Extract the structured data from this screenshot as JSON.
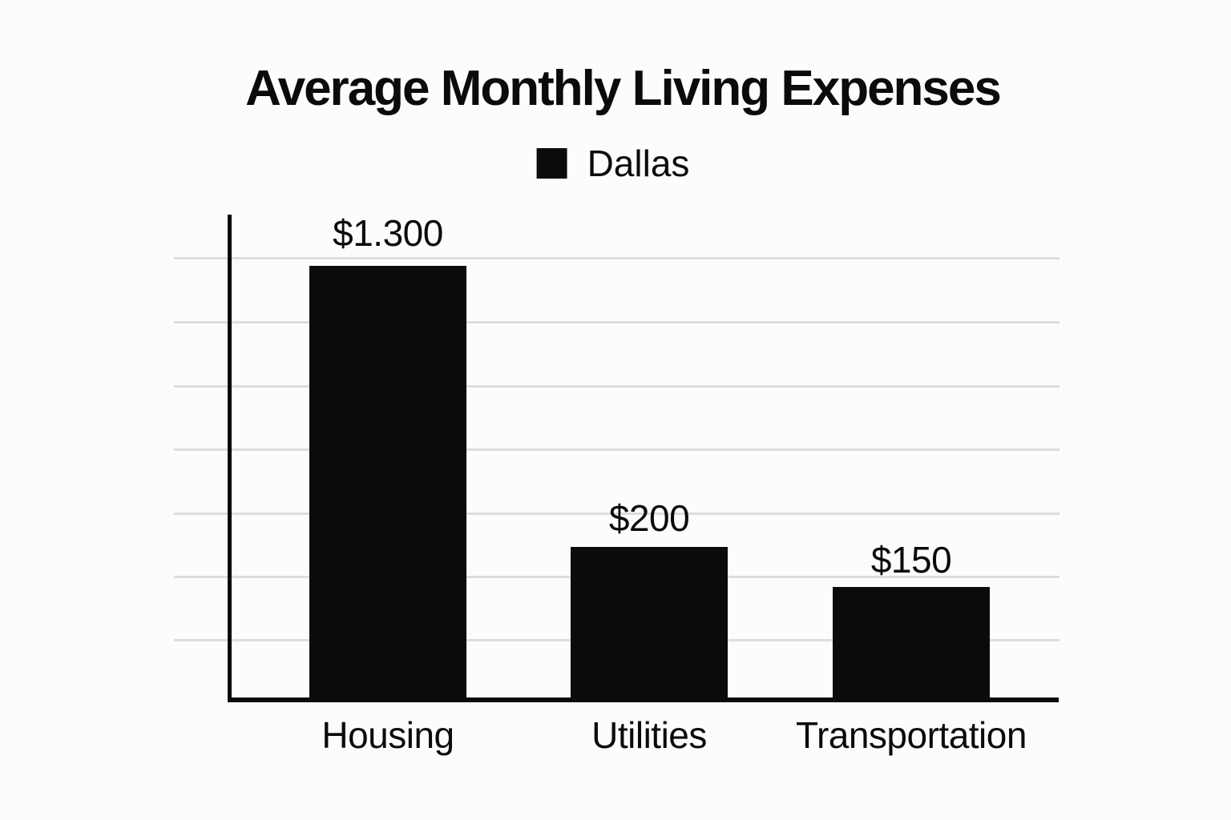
{
  "chart_data": {
    "type": "bar",
    "title": "Average Monthly Living Expenses",
    "legend": {
      "position": "top-center",
      "entries": [
        {
          "label": "Dallas",
          "swatch_color": "#0b0b0b"
        }
      ]
    },
    "categories": [
      "Housing",
      "Utilities",
      "Transportation"
    ],
    "series": [
      {
        "name": "Dallas",
        "values": [
          1300,
          200,
          150
        ]
      }
    ],
    "value_labels": [
      "$1.300",
      "$200",
      "$150"
    ],
    "xlabel": "",
    "ylabel": "",
    "y_tick_labels": [],
    "grid": true,
    "gridline_count": 7,
    "bar_color": "#0b0b0b",
    "axis_color": "#0b0b0b",
    "gridline_color": "#dddddb",
    "background_color": "#fcfcfb"
  }
}
